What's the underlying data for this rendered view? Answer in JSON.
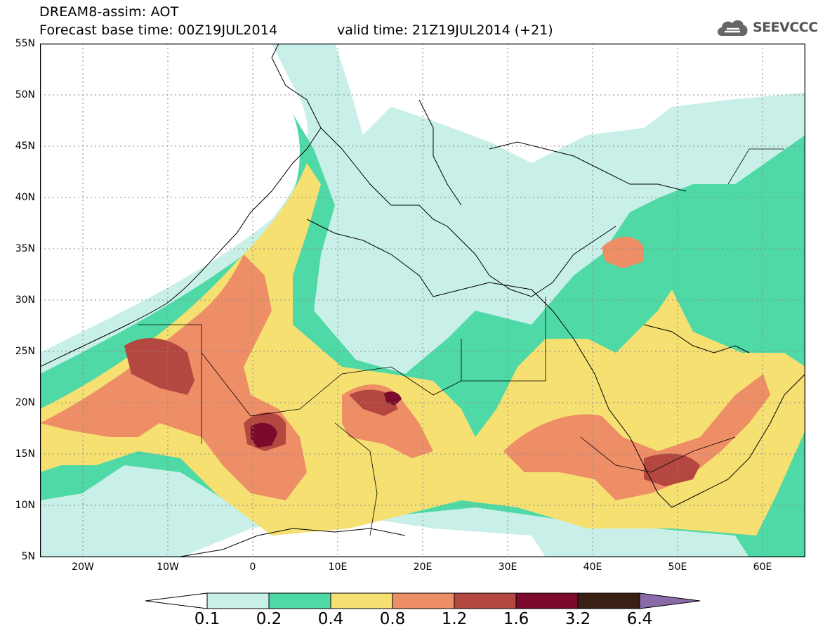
{
  "title": {
    "line1": "DREAM8-assim: AOT",
    "line2": "Forecast base time: 00Z19JUL2014",
    "valid_time": "valid time: 21Z19JUL2014 (+21)"
  },
  "logo": {
    "text": "SEEVCCC",
    "icon": "cloud-icon"
  },
  "axes": {
    "lat_labels": [
      "55N",
      "50N",
      "45N",
      "40N",
      "35N",
      "30N",
      "25N",
      "20N",
      "15N",
      "10N",
      "5N"
    ],
    "lon_labels": [
      "20W",
      "10W",
      "0",
      "10E",
      "20E",
      "30E",
      "40E",
      "50E",
      "60E"
    ]
  },
  "colorbar": {
    "levels": [
      "0.1",
      "0.2",
      "0.4",
      "0.8",
      "1.2",
      "1.6",
      "3.2",
      "6.4"
    ],
    "colors": [
      "#ffffff",
      "#c8f0e8",
      "#4ed9a6",
      "#f5e071",
      "#ee8e66",
      "#b4473f",
      "#7c0a2c",
      "#3a1f14",
      "#8a6aa8"
    ]
  },
  "palette": {
    "land_border": "#000000",
    "grid": "#8a8a8a"
  }
}
